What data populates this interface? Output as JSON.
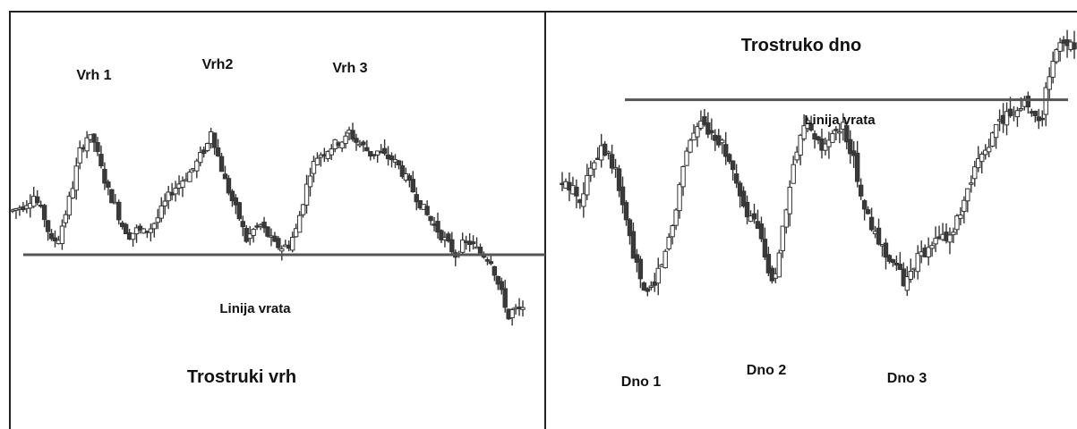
{
  "chart_data": [
    {
      "type": "candlestick",
      "title": "Trostruki vrh",
      "neckline_label": "Linija vrata",
      "annotations": [
        {
          "text": "Vrh 1",
          "x": 21
        },
        {
          "text": "Vrh2",
          "x": 56
        },
        {
          "text": "Vrh 3",
          "x": 95
        }
      ],
      "neckline_price": 40,
      "ylim": [
        0,
        100
      ],
      "xlim": [
        0,
        144
      ],
      "ohlc_shape": [
        [
          0,
          58
        ],
        [
          3,
          60
        ],
        [
          6,
          64
        ],
        [
          9,
          55
        ],
        [
          11,
          45
        ],
        [
          13,
          47
        ],
        [
          15,
          57
        ],
        [
          17,
          68
        ],
        [
          19,
          82
        ],
        [
          21,
          88
        ],
        [
          23,
          86
        ],
        [
          25,
          75
        ],
        [
          27,
          66
        ],
        [
          29,
          60
        ],
        [
          31,
          52
        ],
        [
          33,
          48
        ],
        [
          35,
          50
        ],
        [
          37,
          49
        ],
        [
          39,
          51
        ],
        [
          41,
          55
        ],
        [
          43,
          61
        ],
        [
          45,
          66
        ],
        [
          47,
          69
        ],
        [
          49,
          72
        ],
        [
          51,
          75
        ],
        [
          53,
          80
        ],
        [
          55,
          85
        ],
        [
          56,
          91
        ],
        [
          58,
          80
        ],
        [
          60,
          70
        ],
        [
          62,
          62
        ],
        [
          64,
          55
        ],
        [
          66,
          46
        ],
        [
          68,
          50
        ],
        [
          70,
          52
        ],
        [
          72,
          48
        ],
        [
          74,
          44
        ],
        [
          76,
          43
        ],
        [
          78,
          44
        ],
        [
          80,
          50
        ],
        [
          82,
          62
        ],
        [
          84,
          74
        ],
        [
          86,
          80
        ],
        [
          88,
          82
        ],
        [
          90,
          84
        ],
        [
          92,
          86
        ],
        [
          94,
          87
        ],
        [
          95,
          90
        ],
        [
          97,
          86
        ],
        [
          99,
          84
        ],
        [
          101,
          81
        ],
        [
          103,
          82
        ],
        [
          105,
          80
        ],
        [
          107,
          79
        ],
        [
          109,
          76
        ],
        [
          111,
          71
        ],
        [
          113,
          66
        ],
        [
          115,
          61
        ],
        [
          117,
          56
        ],
        [
          119,
          52
        ],
        [
          121,
          48
        ],
        [
          123,
          44
        ],
        [
          125,
          40
        ],
        [
          127,
          44
        ],
        [
          129,
          45
        ],
        [
          131,
          42
        ],
        [
          133,
          40
        ],
        [
          135,
          38
        ],
        [
          137,
          28
        ],
        [
          139,
          20
        ],
        [
          140,
          14
        ],
        [
          141,
          17
        ]
      ]
    },
    {
      "type": "candlestick",
      "title": "Trostruko dno",
      "neckline_label": "Linija vrata",
      "annotations": [
        {
          "text": "Dno 1",
          "x": 24
        },
        {
          "text": "Dno 2",
          "x": 59
        },
        {
          "text": "Dno 3",
          "x": 96
        }
      ],
      "neckline_price": 77,
      "ylim": [
        0,
        100
      ],
      "xlim": [
        0,
        144
      ],
      "ohlc_shape": [
        [
          0,
          50
        ],
        [
          3,
          49
        ],
        [
          5,
          46
        ],
        [
          7,
          52
        ],
        [
          9,
          58
        ],
        [
          11,
          63
        ],
        [
          13,
          60
        ],
        [
          15,
          54
        ],
        [
          17,
          44
        ],
        [
          19,
          33
        ],
        [
          21,
          24
        ],
        [
          23,
          16
        ],
        [
          25,
          18
        ],
        [
          27,
          23
        ],
        [
          29,
          29
        ],
        [
          31,
          38
        ],
        [
          33,
          50
        ],
        [
          35,
          62
        ],
        [
          37,
          67
        ],
        [
          39,
          69
        ],
        [
          41,
          68
        ],
        [
          43,
          66
        ],
        [
          45,
          63
        ],
        [
          47,
          58
        ],
        [
          49,
          50
        ],
        [
          51,
          42
        ],
        [
          53,
          40
        ],
        [
          55,
          36
        ],
        [
          57,
          28
        ],
        [
          59,
          18
        ],
        [
          61,
          30
        ],
        [
          63,
          42
        ],
        [
          65,
          55
        ],
        [
          67,
          65
        ],
        [
          69,
          69
        ],
        [
          71,
          64
        ],
        [
          73,
          61
        ],
        [
          75,
          64
        ],
        [
          77,
          67
        ],
        [
          79,
          68
        ],
        [
          81,
          62
        ],
        [
          83,
          53
        ],
        [
          85,
          43
        ],
        [
          87,
          36
        ],
        [
          89,
          32
        ],
        [
          91,
          29
        ],
        [
          93,
          26
        ],
        [
          95,
          22
        ],
        [
          96,
          19
        ],
        [
          98,
          24
        ],
        [
          100,
          27
        ],
        [
          102,
          28
        ],
        [
          104,
          31
        ],
        [
          106,
          33
        ],
        [
          108,
          34
        ],
        [
          110,
          36
        ],
        [
          112,
          41
        ],
        [
          114,
          47
        ],
        [
          116,
          54
        ],
        [
          118,
          60
        ],
        [
          120,
          63
        ],
        [
          122,
          68
        ],
        [
          124,
          71
        ],
        [
          126,
          73
        ],
        [
          128,
          75
        ],
        [
          130,
          76
        ],
        [
          132,
          74
        ],
        [
          134,
          71
        ],
        [
          135,
          72
        ],
        [
          136,
          80
        ],
        [
          138,
          88
        ],
        [
          139,
          93
        ],
        [
          141,
          95
        ]
      ]
    }
  ]
}
